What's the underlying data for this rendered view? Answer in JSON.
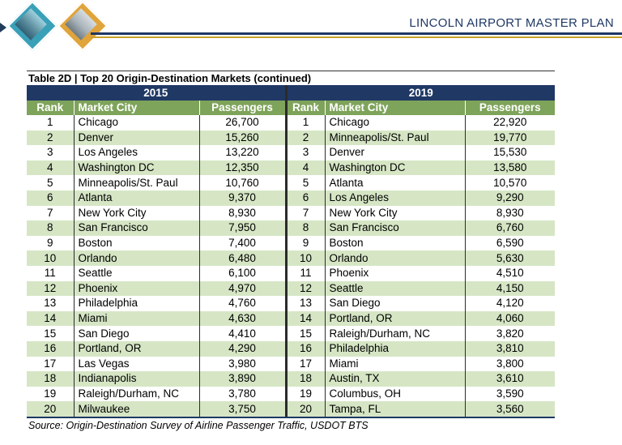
{
  "header": {
    "plan_title": "LINCOLN AIRPORT MASTER PLAN"
  },
  "table": {
    "title": "Table 2D | Top 20 Origin-Destination Markets (continued)",
    "year_left": "2015",
    "year_right": "2019",
    "columns": {
      "rank": "Rank",
      "city": "Market City",
      "passengers": "Passengers"
    },
    "rows": [
      {
        "r15": "1",
        "c15": "Chicago",
        "p15": "26,700",
        "r19": "1",
        "c19": "Chicago",
        "p19": "22,920"
      },
      {
        "r15": "2",
        "c15": "Denver",
        "p15": "15,260",
        "r19": "2",
        "c19": "Minneapolis/St. Paul",
        "p19": "19,770"
      },
      {
        "r15": "3",
        "c15": "Los Angeles",
        "p15": "13,220",
        "r19": "3",
        "c19": "Denver",
        "p19": "15,530"
      },
      {
        "r15": "4",
        "c15": "Washington DC",
        "p15": "12,350",
        "r19": "4",
        "c19": "Washington DC",
        "p19": "13,580"
      },
      {
        "r15": "5",
        "c15": "Minneapolis/St. Paul",
        "p15": "10,760",
        "r19": "5",
        "c19": "Atlanta",
        "p19": "10,570"
      },
      {
        "r15": "6",
        "c15": "Atlanta",
        "p15": "9,370",
        "r19": "6",
        "c19": "Los Angeles",
        "p19": "9,290"
      },
      {
        "r15": "7",
        "c15": "New York City",
        "p15": "8,930",
        "r19": "7",
        "c19": "New York City",
        "p19": "8,930"
      },
      {
        "r15": "8",
        "c15": "San Francisco",
        "p15": "7,950",
        "r19": "8",
        "c19": "San Francisco",
        "p19": "6,760"
      },
      {
        "r15": "9",
        "c15": "Boston",
        "p15": "7,400",
        "r19": "9",
        "c19": "Boston",
        "p19": "6,590"
      },
      {
        "r15": "10",
        "c15": "Orlando",
        "p15": "6,480",
        "r19": "10",
        "c19": "Orlando",
        "p19": "5,630"
      },
      {
        "r15": "11",
        "c15": "Seattle",
        "p15": "6,100",
        "r19": "11",
        "c19": "Phoenix",
        "p19": "4,510"
      },
      {
        "r15": "12",
        "c15": "Phoenix",
        "p15": "4,970",
        "r19": "12",
        "c19": "Seattle",
        "p19": "4,150"
      },
      {
        "r15": "13",
        "c15": "Philadelphia",
        "p15": "4,760",
        "r19": "13",
        "c19": "San Diego",
        "p19": "4,120"
      },
      {
        "r15": "14",
        "c15": "Miami",
        "p15": "4,630",
        "r19": "14",
        "c19": "Portland, OR",
        "p19": "4,060"
      },
      {
        "r15": "15",
        "c15": "San Diego",
        "p15": "4,410",
        "r19": "15",
        "c19": "Raleigh/Durham, NC",
        "p19": "3,820"
      },
      {
        "r15": "16",
        "c15": "Portland, OR",
        "p15": "4,290",
        "r19": "16",
        "c19": "Philadelphia",
        "p19": "3,810"
      },
      {
        "r15": "17",
        "c15": "Las Vegas",
        "p15": "3,980",
        "r19": "17",
        "c19": "Miami",
        "p19": "3,800"
      },
      {
        "r15": "18",
        "c15": "Indianapolis",
        "p15": "3,890",
        "r19": "18",
        "c19": "Austin, TX",
        "p19": "3,610"
      },
      {
        "r15": "19",
        "c15": "Raleigh/Durham, NC",
        "p15": "3,780",
        "r19": "19",
        "c19": "Columbus, OH",
        "p19": "3,590"
      },
      {
        "r15": "20",
        "c15": "Milwaukee",
        "p15": "3,750",
        "r19": "20",
        "c19": "Tampa, FL",
        "p19": "3,560"
      }
    ],
    "source": "Source: Origin-Destination Survey of Airline Passenger Traffic, USDOT BTS"
  },
  "colors": {
    "navy": "#1f3864",
    "green_header": "#7ea35a",
    "green_band": "#d6e6c5",
    "gold": "#c9a227"
  }
}
